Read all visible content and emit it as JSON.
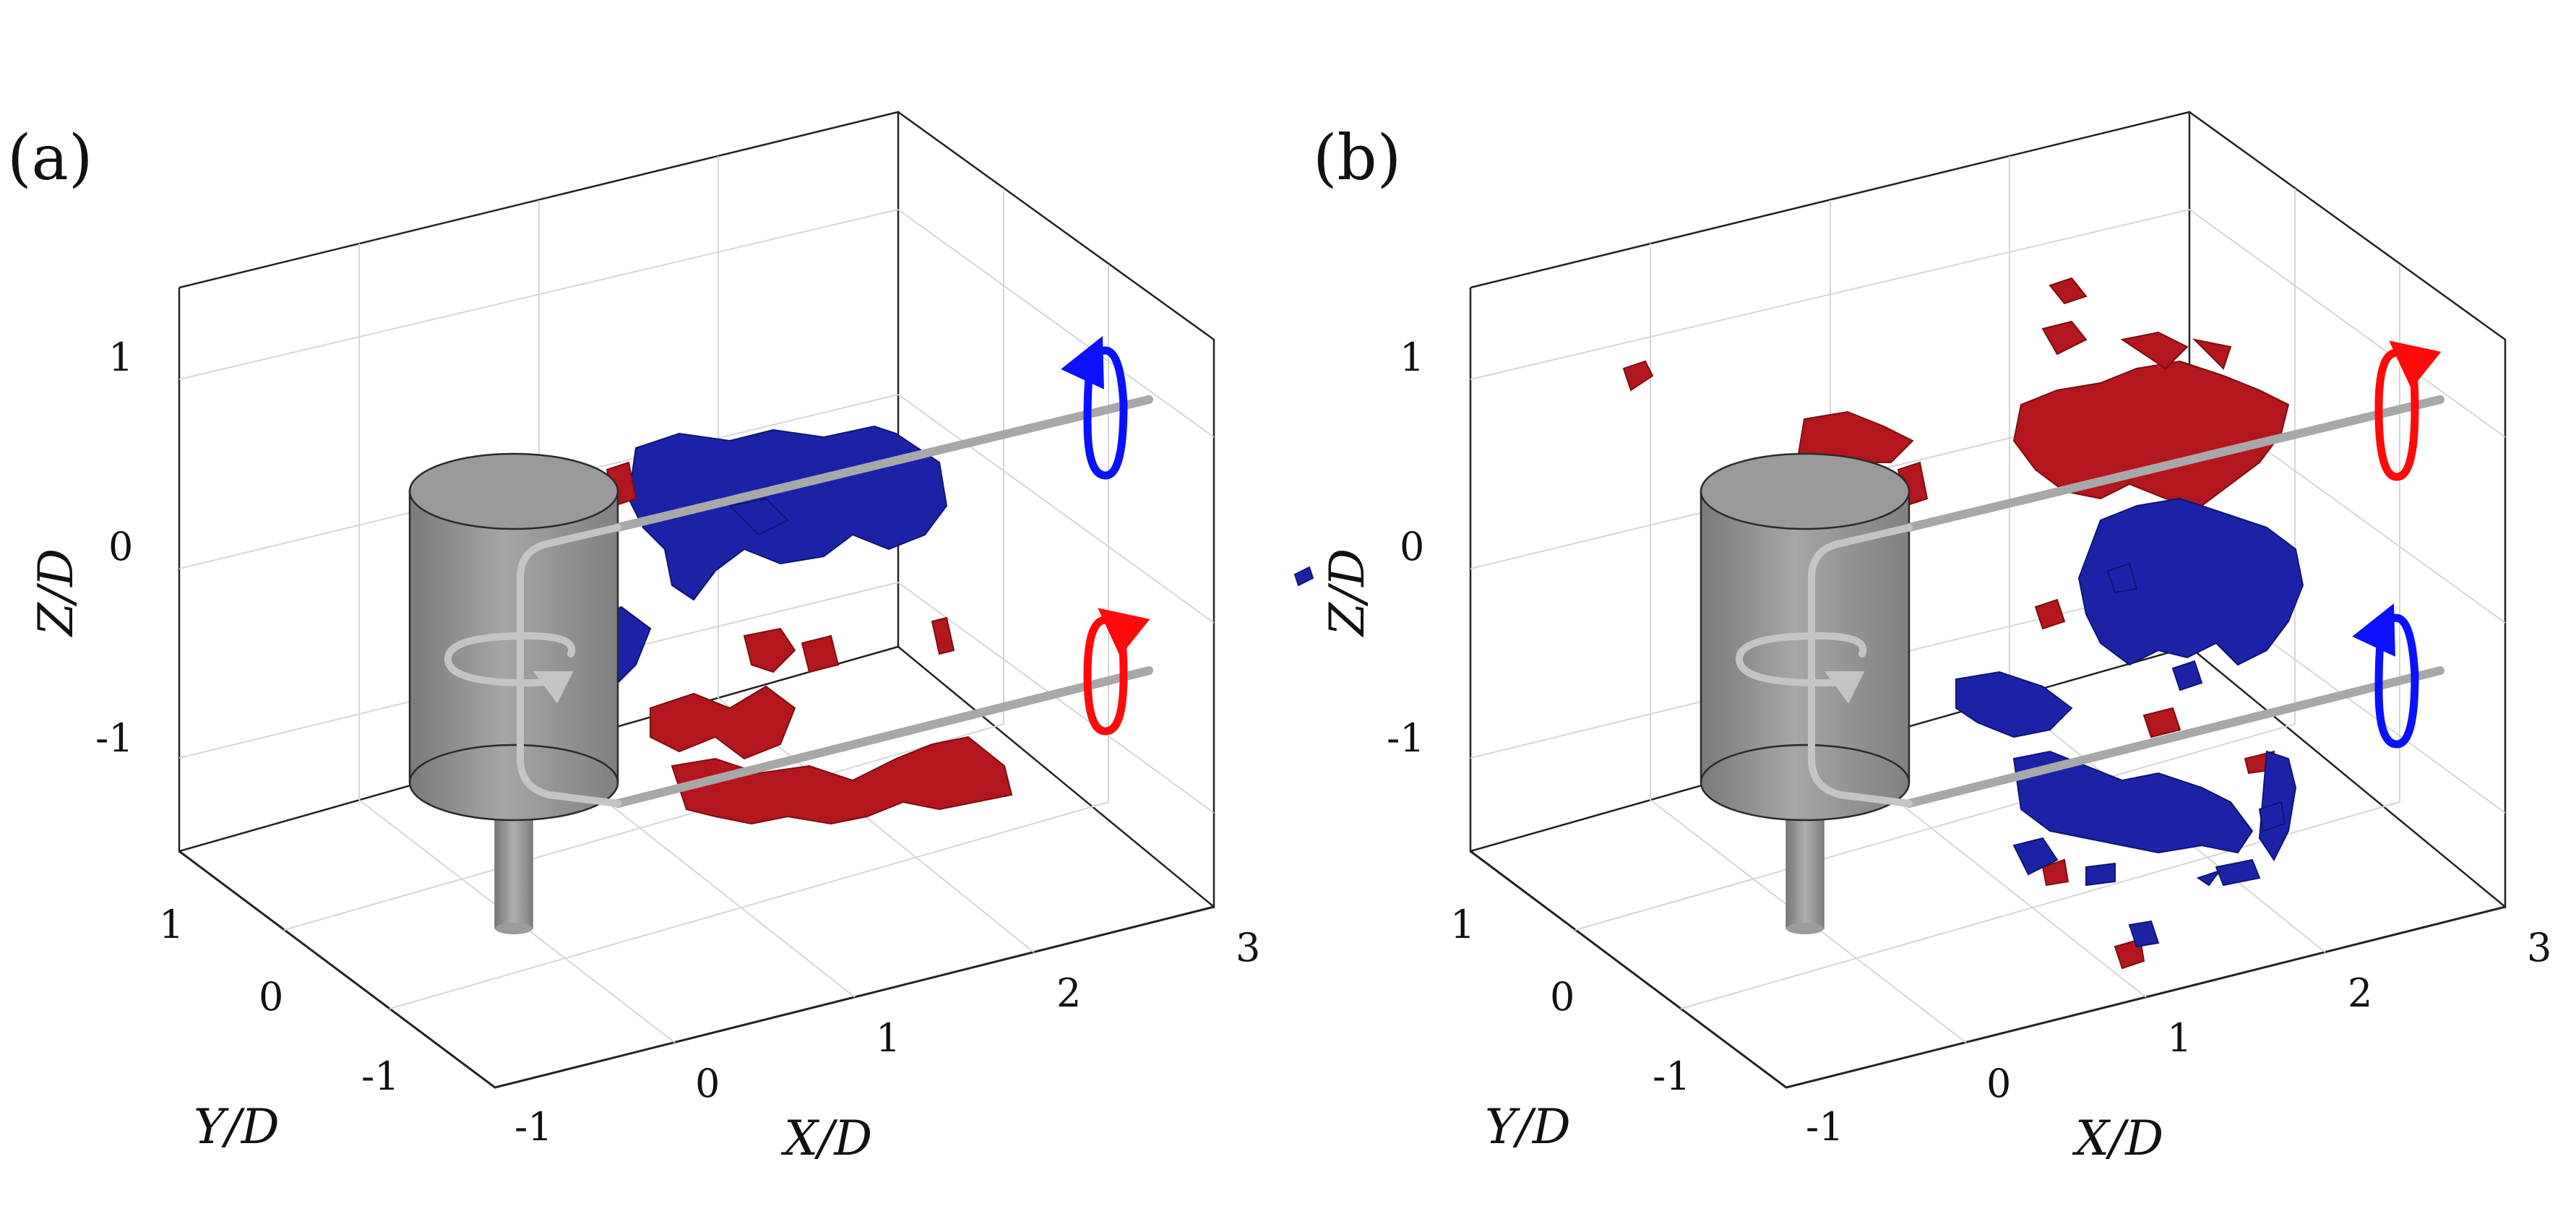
{
  "panels": [
    {
      "label": "(a)",
      "x_ticks": [
        "-1",
        "0",
        "1",
        "2",
        "3"
      ],
      "y_ticks": [
        "1",
        "0",
        "-1"
      ],
      "z_ticks": [
        "1",
        "0",
        "-1"
      ],
      "x_label": "X/D",
      "y_label": "Y/D",
      "z_label": "Z/D",
      "upper_vortex_sense": "blue",
      "lower_vortex_sense": "red"
    },
    {
      "label": "(b)",
      "x_ticks": [
        "-1",
        "0",
        "1",
        "2",
        "3"
      ],
      "y_ticks": [
        "1",
        "0",
        "-1"
      ],
      "z_ticks": [
        "1",
        "0",
        "-1"
      ],
      "x_label": "X/D",
      "y_label": "Y/D",
      "z_label": "Z/D",
      "upper_vortex_sense": "red",
      "lower_vortex_sense": "blue"
    }
  ],
  "colors": {
    "positive_vorticity": "#b3161c",
    "negative_vorticity": "#1c22a8",
    "arrow_red": "#ff0a0a",
    "arrow_blue": "#0b10ff",
    "cylinder": "#8d8d8d"
  }
}
